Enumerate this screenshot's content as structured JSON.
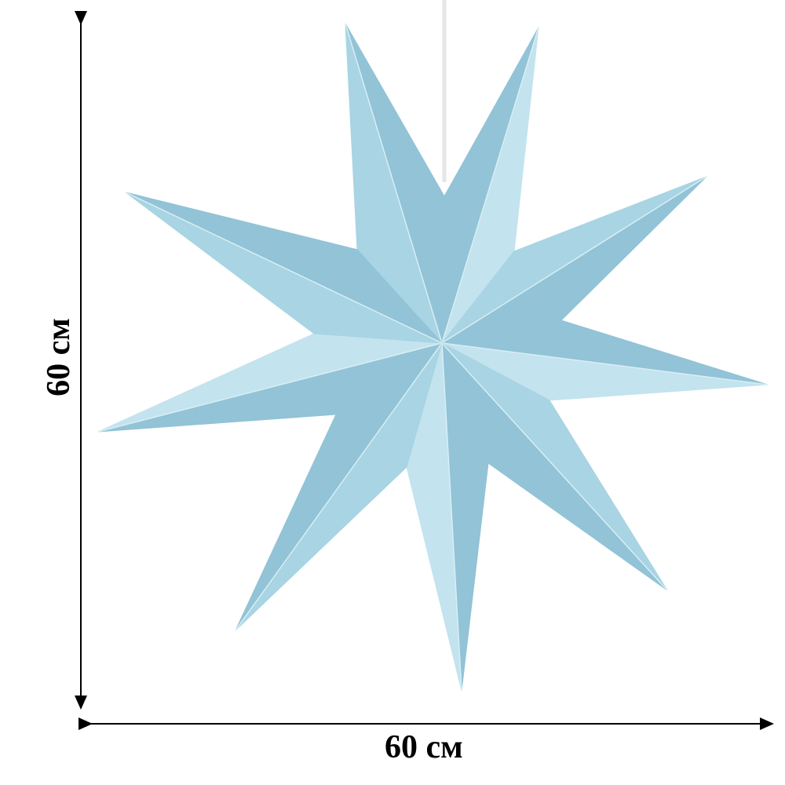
{
  "dimensions": {
    "width_label": "60 см",
    "height_label": "60 см"
  },
  "product": {
    "shape": "nine-pointed paper star",
    "colors": {
      "base": "#a8d4e3",
      "shade": "#92c3d6",
      "highlight": "#c3e3ee",
      "string": "#f4f4f4"
    }
  }
}
